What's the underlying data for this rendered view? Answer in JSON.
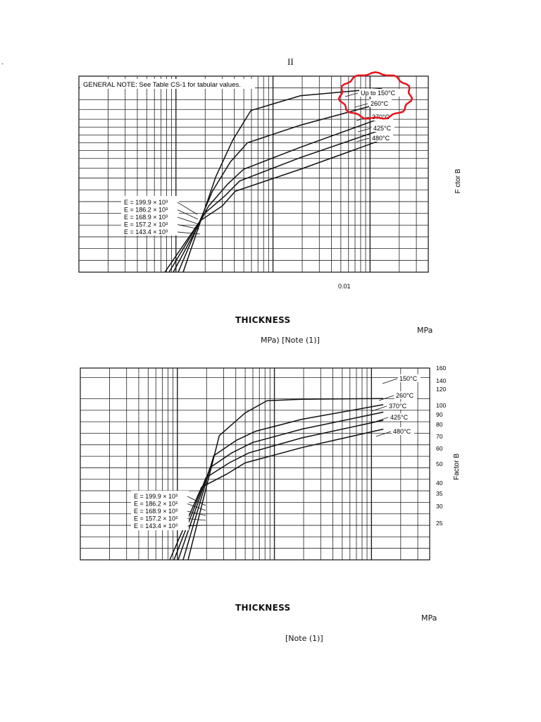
{
  "page": {
    "corner_mark": "-",
    "roman_numeral": "II"
  },
  "chart_data": [
    {
      "type": "line",
      "general_note": "GENERAL NOTE: See Table CS-1 for tabular values.",
      "ylabel": "F ctor B",
      "xlabel": "THICKNESS",
      "x_tick_label": "0.01",
      "log_scale_x": true,
      "grid": true,
      "series": [
        {
          "name": "Up to 150°C",
          "E_label": "E = 199.9 × 10³",
          "points": [
            [
              5e-05,
              0
            ],
            [
              0.00075,
              65
            ],
            [
              0.00105,
              90
            ],
            [
              0.0015,
              110
            ],
            [
              0.004,
              120
            ],
            [
              0.02,
              125
            ]
          ]
        },
        {
          "name": "260°C",
          "E_label": "E = 186.2 × 10³",
          "points": [
            [
              5e-05,
              0
            ],
            [
              0.0007,
              55
            ],
            [
              0.001,
              75
            ],
            [
              0.0014,
              88
            ],
            [
              0.004,
              100
            ],
            [
              0.02,
              115
            ]
          ]
        },
        {
          "name": "370°C",
          "E_label": "E = 168.9 × 10³",
          "points": [
            [
              5e-05,
              0
            ],
            [
              0.00065,
              45
            ],
            [
              0.00095,
              60
            ],
            [
              0.0013,
              70
            ],
            [
              0.004,
              85
            ],
            [
              0.02,
              105
            ]
          ]
        },
        {
          "name": "425°C",
          "E_label": "E = 157.2 × 10³",
          "points": [
            [
              5e-05,
              0
            ],
            [
              0.0006,
              40
            ],
            [
              0.0009,
              52
            ],
            [
              0.0012,
              62
            ],
            [
              0.004,
              78
            ],
            [
              0.02,
              97
            ]
          ]
        },
        {
          "name": "480°C",
          "E_label": "E = 143.4 × 10³",
          "points": [
            [
              5e-05,
              0
            ],
            [
              0.00055,
              35
            ],
            [
              0.00085,
              45
            ],
            [
              0.0011,
              55
            ],
            [
              0.004,
              70
            ],
            [
              0.02,
              90
            ]
          ]
        }
      ],
      "units_label": "MPa",
      "units_note": "MPa) [Note (1)]",
      "highlight": "red hand-drawn circle around Up to 150°C / 260°C labels",
      "highlight_color": "#e8131b"
    },
    {
      "type": "line",
      "ylabel": "Factor B",
      "xlabel": "THICKNESS",
      "log_scale_x": true,
      "grid": true,
      "y_ticks": [
        "160",
        "140",
        "120",
        "100",
        "90",
        "80",
        "70",
        "60",
        "50",
        "40",
        "35",
        "30",
        "25"
      ],
      "series": [
        {
          "name": "150°C",
          "E_label": "E = 199.9 × 10³",
          "points": [
            [
              5e-05,
              20
            ],
            [
              0.00078,
              80
            ],
            [
              0.0013,
              103
            ],
            [
              0.002,
              118
            ],
            [
              0.004,
              120
            ],
            [
              0.02,
              121
            ]
          ]
        },
        {
          "name": "260°C",
          "E_label": "E = 186.2 × 10³",
          "points": [
            [
              5e-05,
              20
            ],
            [
              0.0007,
              64
            ],
            [
              0.0011,
              76
            ],
            [
              0.0016,
              84
            ],
            [
              0.004,
              96
            ],
            [
              0.02,
              113
            ]
          ]
        },
        {
          "name": "370°C",
          "E_label": "E = 168.9 × 10³",
          "points": [
            [
              5e-05,
              20
            ],
            [
              0.00065,
              56
            ],
            [
              0.001,
              66
            ],
            [
              0.0015,
              74
            ],
            [
              0.004,
              86
            ],
            [
              0.02,
              104
            ]
          ]
        },
        {
          "name": "425°C",
          "E_label": "E = 157.2 × 10³",
          "points": [
            [
              5e-05,
              20
            ],
            [
              0.0006,
              50
            ],
            [
              0.00095,
              59
            ],
            [
              0.0014,
              66
            ],
            [
              0.004,
              78
            ],
            [
              0.02,
              95
            ]
          ]
        },
        {
          "name": "480°C",
          "E_label": "E = 143.4 × 10³",
          "points": [
            [
              5e-05,
              20
            ],
            [
              0.00055,
              45
            ],
            [
              0.0009,
              52
            ],
            [
              0.0013,
              59
            ],
            [
              0.004,
              70
            ],
            [
              0.02,
              86
            ]
          ]
        }
      ],
      "units_label": "MPa",
      "units_note": "[Note (1)]"
    }
  ]
}
